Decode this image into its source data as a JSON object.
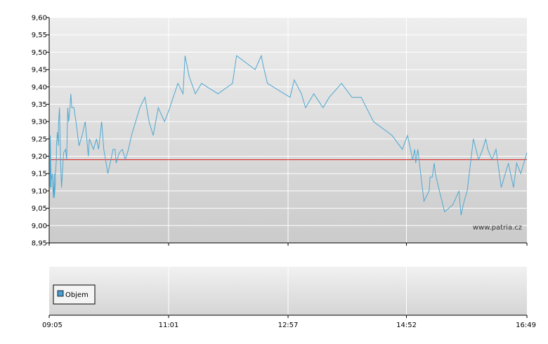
{
  "chart_data": {
    "type": "line",
    "watermark": "www.patria.cz",
    "y_ticks": [
      "9,60",
      "9,55",
      "9,50",
      "9,45",
      "9,40",
      "9,35",
      "9,30",
      "9,25",
      "9,20",
      "9,15",
      "9,10",
      "9,05",
      "9,00",
      "8,95"
    ],
    "ylim": [
      8.95,
      9.6
    ],
    "x_ticks": [
      "09:05",
      "11:01",
      "12:57",
      "14:52",
      "16:49"
    ],
    "reference_line": 9.19,
    "colors": {
      "line": "#4fa8d0",
      "reference": "#e02020"
    },
    "legend": {
      "label": "Objem",
      "color": "#4a9ed3"
    },
    "series": [
      {
        "x": [
          "09:05",
          "09:06",
          "09:06",
          "09:07",
          "09:07",
          "09:08",
          "09:09",
          "09:10",
          "09:10",
          "09:11",
          "09:11",
          "09:12",
          "09:12",
          "09:13",
          "09:14",
          "09:14",
          "09:15",
          "09:16",
          "09:17",
          "09:19",
          "09:21",
          "09:22",
          "09:23",
          "09:24",
          "09:25",
          "09:26",
          "09:27",
          "09:29",
          "09:31",
          "09:34",
          "09:37",
          "09:40",
          "09:43",
          "09:44",
          "09:48",
          "09:51",
          "09:53",
          "09:56",
          "09:58",
          "10:02",
          "10:05",
          "10:07",
          "10:09",
          "10:10",
          "10:13",
          "10:16",
          "10:19",
          "10:22",
          "10:25",
          "10:29",
          "10:33",
          "10:38",
          "10:42",
          "10:46",
          "10:51",
          "10:57",
          "11:01",
          "11:10",
          "11:15",
          "11:17",
          "11:21",
          "11:27",
          "11:33",
          "11:49",
          "12:03",
          "12:07",
          "12:25",
          "12:31",
          "12:33",
          "12:37",
          "12:59",
          "13:03",
          "13:10",
          "13:14",
          "13:22",
          "13:31",
          "13:37",
          "13:49",
          "13:59",
          "14:08",
          "14:20",
          "14:38",
          "14:48",
          "14:53",
          "14:56",
          "14:58",
          "15:00",
          "15:01",
          "15:03",
          "15:09",
          "15:14",
          "15:15",
          "15:17",
          "15:19",
          "15:20",
          "15:24",
          "15:29",
          "15:37",
          "15:43",
          "15:45",
          "15:48",
          "15:51",
          "15:57",
          "16:02",
          "16:06",
          "16:09",
          "16:11",
          "16:15",
          "16:19",
          "16:24",
          "16:31",
          "16:36",
          "16:39",
          "16:43",
          "16:46",
          "16:49"
        ],
        "y": [
          9.11,
          9.11,
          9.26,
          9.11,
          9.13,
          9.15,
          9.08,
          9.15,
          9.08,
          9.12,
          9.15,
          9.19,
          9.23,
          9.27,
          9.23,
          9.29,
          9.34,
          9.19,
          9.11,
          9.21,
          9.22,
          9.19,
          9.34,
          9.3,
          9.33,
          9.38,
          9.34,
          9.34,
          9.3,
          9.23,
          9.26,
          9.3,
          9.2,
          9.25,
          9.22,
          9.25,
          9.22,
          9.3,
          9.22,
          9.15,
          9.19,
          9.22,
          9.22,
          9.18,
          9.21,
          9.22,
          9.19,
          9.22,
          9.26,
          9.3,
          9.34,
          9.37,
          9.3,
          9.26,
          9.34,
          9.3,
          9.33,
          9.41,
          9.38,
          9.49,
          9.43,
          9.38,
          9.41,
          9.38,
          9.41,
          9.49,
          9.45,
          9.49,
          9.46,
          9.41,
          9.37,
          9.42,
          9.38,
          9.34,
          9.38,
          9.34,
          9.37,
          9.41,
          9.37,
          9.37,
          9.3,
          9.26,
          9.22,
          9.26,
          9.22,
          9.19,
          9.22,
          9.18,
          9.22,
          9.07,
          9.1,
          9.14,
          9.14,
          9.18,
          9.15,
          9.1,
          9.04,
          9.06,
          9.1,
          9.03,
          9.07,
          9.1,
          9.25,
          9.19,
          9.22,
          9.25,
          9.22,
          9.19,
          9.22,
          9.11,
          9.18,
          9.11,
          9.18,
          9.15,
          9.18,
          9.21
        ]
      }
    ]
  }
}
